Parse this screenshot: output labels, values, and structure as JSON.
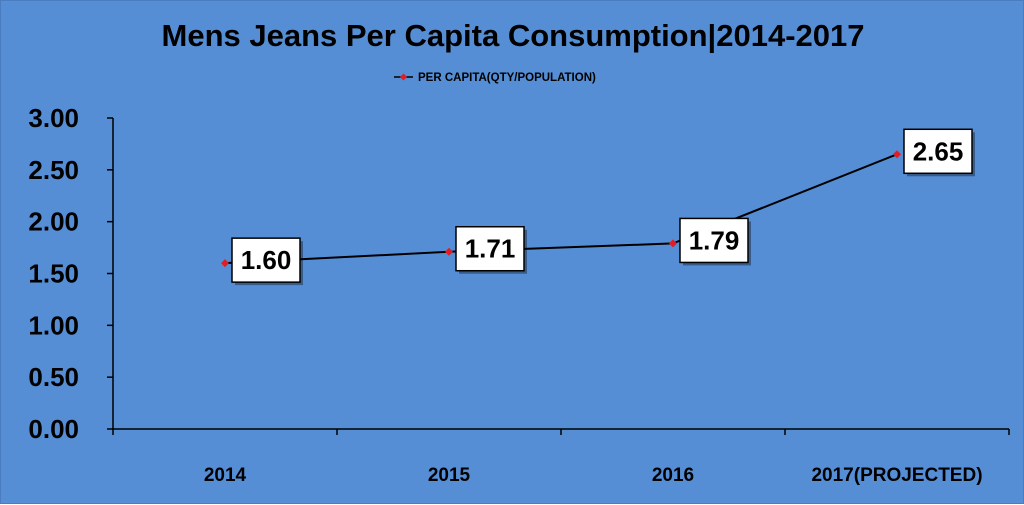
{
  "chart_data": {
    "type": "line",
    "title": "Mens Jeans Per Capita Consumption|2014-2017",
    "categories": [
      "2014",
      "2015",
      "2016",
      "2017(PROJECTED)"
    ],
    "series": [
      {
        "name": "PER CAPITA(QTY/POPULATION)",
        "values": [
          1.6,
          1.71,
          1.79,
          2.65
        ],
        "data_labels": [
          "1.60",
          "1.71",
          "1.79",
          "2.65"
        ]
      }
    ],
    "y_ticks": [
      "3.00",
      "2.50",
      "2.00",
      "1.50",
      "1.00",
      "0.50",
      "0.00"
    ],
    "ylim": [
      0,
      3
    ],
    "xlabel": "",
    "ylabel": "",
    "grid": false,
    "legend_position": "top",
    "colors": {
      "background": "#558ed5",
      "line": "#000000",
      "marker": "#e31b23",
      "label_box": "#ffffff"
    }
  }
}
